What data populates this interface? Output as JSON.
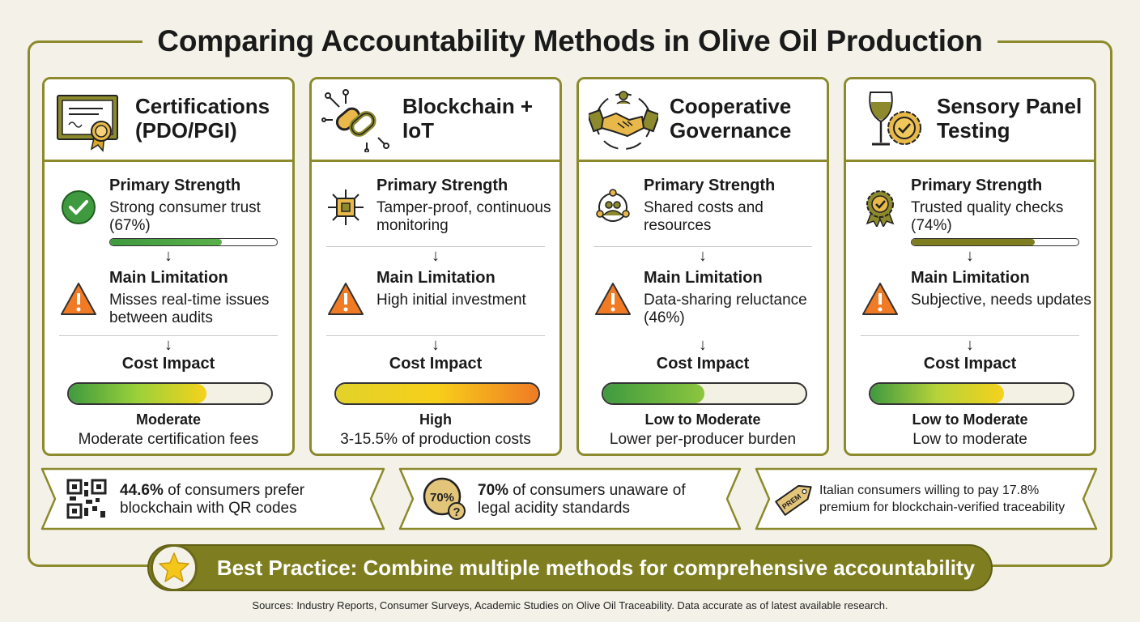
{
  "title": "Comparing Accountability Methods in Olive Oil Production",
  "colors": {
    "olive": "#8c8a2c",
    "banner": "#7e7d1f",
    "warning": "#f07b24",
    "green": "#3f9a3f"
  },
  "labels": {
    "strength": "Primary Strength",
    "limitation": "Main Limitation",
    "cost": "Cost Impact"
  },
  "cards": [
    {
      "title_line1": "Certifications",
      "title_line2": "(PDO/PGI)",
      "header_icon": "certificate-icon",
      "strength_icon": "checkmark-circle-icon",
      "strength_text": "Strong consumer trust (67%)",
      "strength_bar": 0.67,
      "limitation_text": "Misses real-time issues between audits",
      "cost_fill": 0.68,
      "cost_level": "Moderate",
      "cost_note": "Moderate certification fees"
    },
    {
      "title_line1": "Blockchain +",
      "title_line2": "IoT",
      "header_icon": "chain-link-circuit-icon",
      "strength_icon": "microchip-icon",
      "strength_text": "Tamper-proof, continuous monitoring",
      "strength_bar": null,
      "limitation_text": "High initial investment",
      "cost_fill": 1.0,
      "cost_level": "High",
      "cost_note": "3-15.5% of production costs"
    },
    {
      "title_line1": "Cooperative",
      "title_line2": "Governance",
      "header_icon": "handshake-icon",
      "strength_icon": "group-network-icon",
      "strength_text": "Shared costs and resources",
      "strength_bar": null,
      "limitation_text": "Data-sharing reluctance (46%)",
      "cost_fill": 0.5,
      "cost_level": "Low to Moderate",
      "cost_note": "Lower per-producer burden"
    },
    {
      "title_line1": "Sensory Panel",
      "title_line2": "Testing",
      "header_icon": "wine-glass-seal-icon",
      "strength_icon": "award-ribbon-icon",
      "strength_text": "Trusted quality checks (74%)",
      "strength_bar": 0.74,
      "limitation_text": "Subjective, needs updates",
      "cost_fill": 0.66,
      "cost_level": "Low to Moderate",
      "cost_note": "Low to moderate"
    }
  ],
  "stats": [
    {
      "icon": "qr-code-icon",
      "bold": "44.6%",
      "rest": " of consumers prefer blockchain with QR codes"
    },
    {
      "icon": "percent-question-icon",
      "badge": "70%",
      "bold": "70%",
      "rest": " of consumers unaware of legal acidity standards"
    },
    {
      "icon": "price-tag-icon",
      "tag_text": "PREM",
      "bold": "",
      "rest": "Italian consumers willing to pay 17.8% premium for blockchain-verified traceability"
    }
  ],
  "banner": "Best Practice: Combine multiple methods for comprehensive accountability",
  "sources": "Sources: Industry Reports, Consumer Surveys, Academic Studies on Olive Oil Traceability. Data accurate as of latest available research."
}
